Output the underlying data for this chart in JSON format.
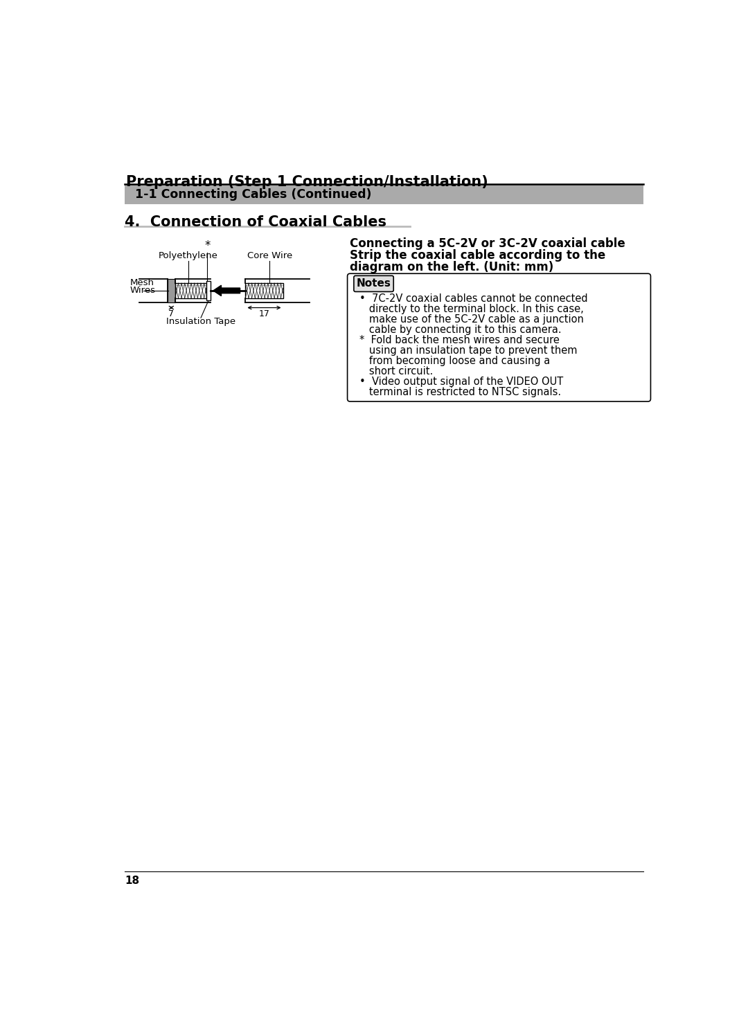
{
  "page_bg": "#ffffff",
  "title_text": "Preparation (Step 1 Connection/Installation)",
  "section_bg": "#aaaaaa",
  "section_text": "1-1 Connecting Cables (Continued)",
  "subsection_text": "4.  Connection of Coaxial Cables",
  "right_title_line1": "Connecting a 5C-2V or 3C-2V coaxial cable",
  "right_title_line2": "Strip the coaxial cable according to the",
  "right_title_line3": "diagram on the left. (Unit: mm)",
  "notes_title": "Notes",
  "notes_bullet1_line1": "•  7C-2V coaxial cables cannot be connected",
  "notes_bullet1_line2": "   directly to the terminal block. In this case,",
  "notes_bullet1_line3": "   make use of the 5C-2V cable as a junction",
  "notes_bullet1_line4": "   cable by connecting it to this camera.",
  "notes_star_line1": "*  Fold back the mesh wires and secure",
  "notes_star_line2": "   using an insulation tape to prevent them",
  "notes_star_line3": "   from becoming loose and causing a",
  "notes_star_line4": "   short circuit.",
  "notes_bullet2_line1": "•  Video output signal of the VIDEO OUT",
  "notes_bullet2_line2": "   terminal is restricted to NTSC signals.",
  "page_number": "18",
  "diagram_labels": {
    "polyethylene": "Polyethylene",
    "core_wire": "Core Wire",
    "mesh_wires_1": "Mesh",
    "mesh_wires_2": "Wires",
    "insulation_tape": "Insulation Tape",
    "dim_7": "7",
    "dim_17": "17",
    "star": "*"
  }
}
